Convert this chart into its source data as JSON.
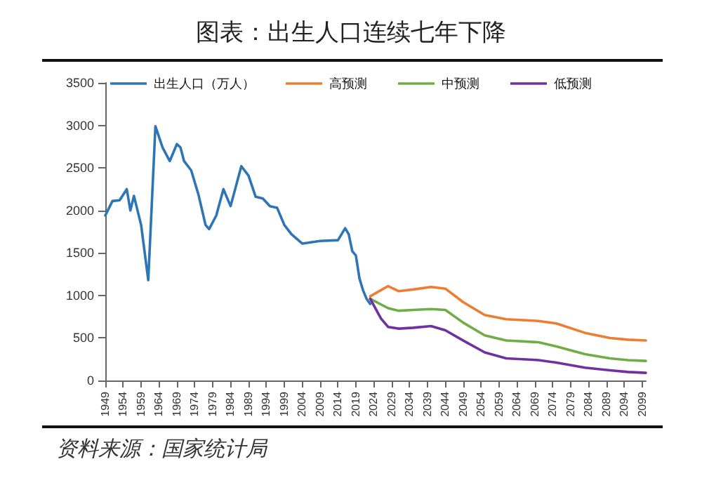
{
  "chart_data": {
    "type": "line",
    "title": "图表：出生人口连续七年下降",
    "annotations": [
      "资料来源：国家统计局"
    ],
    "xlim": [
      1949,
      2100
    ],
    "xticks": [
      1949,
      1954,
      1959,
      1964,
      1969,
      1974,
      1979,
      1984,
      1989,
      1994,
      1999,
      2004,
      2009,
      2014,
      2019,
      2024,
      2029,
      2034,
      2039,
      2044,
      2049,
      2054,
      2059,
      2064,
      2069,
      2074,
      2079,
      2084,
      2089,
      2094,
      2099
    ],
    "ylim": [
      0,
      3500
    ],
    "yticks": [
      0,
      500,
      1000,
      1500,
      2000,
      2500,
      3000,
      3500
    ],
    "grid": false,
    "legend": "top",
    "marker": "none",
    "line_style": "solid",
    "series": [
      {
        "name": "出生人口（万人）",
        "color": "#2e75b6",
        "x": [
          1949,
          1951,
          1953,
          1955,
          1956,
          1957,
          1959,
          1961,
          1963,
          1965,
          1967,
          1969,
          1970,
          1971,
          1973,
          1975,
          1977,
          1978,
          1980,
          1982,
          1984,
          1987,
          1989,
          1991,
          1993,
          1995,
          1997,
          1999,
          2001,
          2004,
          2009,
          2014,
          2016,
          2017,
          2018,
          2019,
          2020,
          2021,
          2022,
          2023
        ],
        "values": [
          1940,
          2110,
          2120,
          2250,
          2000,
          2170,
          1830,
          1180,
          2990,
          2740,
          2580,
          2780,
          2740,
          2580,
          2470,
          2190,
          1830,
          1780,
          1940,
          2250,
          2050,
          2520,
          2410,
          2160,
          2140,
          2050,
          2030,
          1830,
          1720,
          1610,
          1640,
          1650,
          1790,
          1720,
          1520,
          1470,
          1200,
          1060,
          960,
          900
        ]
      },
      {
        "name": "高预测",
        "color": "#ed7d31",
        "x": [
          2023,
          2028,
          2031,
          2035,
          2040,
          2044,
          2049,
          2055,
          2061,
          2070,
          2075,
          2083,
          2090,
          2095,
          2100
        ],
        "values": [
          990,
          1110,
          1050,
          1070,
          1100,
          1080,
          920,
          770,
          720,
          700,
          670,
          560,
          500,
          480,
          470
        ]
      },
      {
        "name": "中预测",
        "color": "#70ad47",
        "x": [
          2023,
          2028,
          2031,
          2035,
          2040,
          2044,
          2049,
          2055,
          2061,
          2070,
          2075,
          2083,
          2090,
          2095,
          2100
        ],
        "values": [
          960,
          850,
          820,
          830,
          840,
          830,
          680,
          530,
          470,
          450,
          400,
          310,
          260,
          240,
          230
        ]
      },
      {
        "name": "低预测",
        "color": "#7030a0",
        "x": [
          2023,
          2026,
          2028,
          2031,
          2035,
          2040,
          2044,
          2049,
          2055,
          2061,
          2070,
          2075,
          2083,
          2090,
          2095,
          2100
        ],
        "values": [
          960,
          730,
          630,
          610,
          620,
          640,
          590,
          470,
          330,
          260,
          240,
          210,
          150,
          120,
          100,
          90
        ]
      }
    ]
  }
}
